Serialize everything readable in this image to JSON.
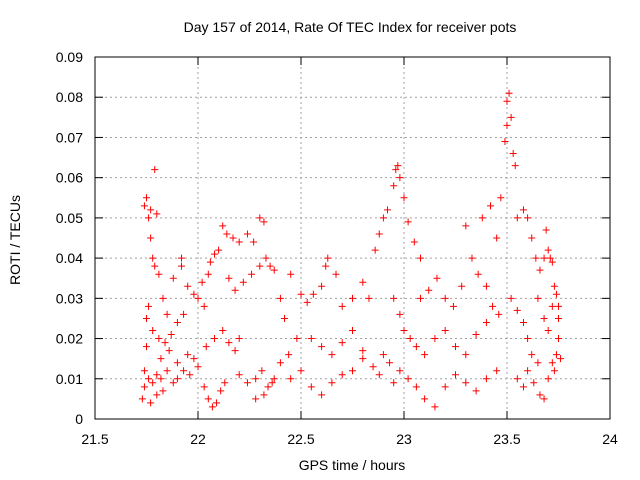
{
  "chart_data": {
    "type": "scatter",
    "title": "Day 157 of 2014, Rate Of TEC Index for receiver pots",
    "xlabel": "GPS time / hours",
    "ylabel": "ROTI / TECUs",
    "xlim": [
      21.5,
      24
    ],
    "ylim": [
      0,
      0.09
    ],
    "x_ticks": [
      21.5,
      22,
      22.5,
      23,
      23.5,
      24
    ],
    "x_tick_labels": [
      "21.5",
      "22",
      "22.5",
      "23",
      "23.5",
      "24"
    ],
    "y_ticks": [
      0,
      0.01,
      0.02,
      0.03,
      0.04,
      0.05,
      0.06,
      0.07,
      0.08,
      0.09
    ],
    "y_tick_labels": [
      "0",
      "0.01",
      "0.02",
      "0.03",
      "0.04",
      "0.05",
      "0.06",
      "0.07",
      "0.08",
      "0.09"
    ],
    "grid": true,
    "marker": "+",
    "series": [
      {
        "name": "pots",
        "color": "#ff0000",
        "points": [
          [
            21.73,
            0.005
          ],
          [
            21.74,
            0.008
          ],
          [
            21.74,
            0.012
          ],
          [
            21.75,
            0.018
          ],
          [
            21.75,
            0.025
          ],
          [
            21.76,
            0.028
          ],
          [
            21.74,
            0.053
          ],
          [
            21.75,
            0.055
          ],
          [
            21.76,
            0.05
          ],
          [
            21.77,
            0.045
          ],
          [
            21.78,
            0.04
          ],
          [
            21.79,
            0.038
          ],
          [
            21.77,
            0.052
          ],
          [
            21.79,
            0.062
          ],
          [
            21.8,
            0.051
          ],
          [
            21.81,
            0.036
          ],
          [
            21.83,
            0.03
          ],
          [
            21.85,
            0.026
          ],
          [
            21.76,
            0.01
          ],
          [
            21.78,
            0.009
          ],
          [
            21.8,
            0.011
          ],
          [
            21.82,
            0.01
          ],
          [
            21.85,
            0.012
          ],
          [
            21.88,
            0.009
          ],
          [
            21.77,
            0.004
          ],
          [
            21.8,
            0.006
          ],
          [
            21.83,
            0.007
          ],
          [
            21.9,
            0.01
          ],
          [
            21.93,
            0.012
          ],
          [
            21.96,
            0.011
          ],
          [
            21.78,
            0.022
          ],
          [
            21.81,
            0.02
          ],
          [
            21.84,
            0.019
          ],
          [
            21.87,
            0.021
          ],
          [
            21.9,
            0.024
          ],
          [
            21.93,
            0.026
          ],
          [
            21.82,
            0.015
          ],
          [
            21.86,
            0.017
          ],
          [
            21.9,
            0.014
          ],
          [
            21.95,
            0.016
          ],
          [
            21.98,
            0.015
          ],
          [
            22.0,
            0.013
          ],
          [
            21.88,
            0.035
          ],
          [
            21.92,
            0.038
          ],
          [
            21.95,
            0.033
          ],
          [
            21.98,
            0.031
          ],
          [
            22.02,
            0.034
          ],
          [
            22.05,
            0.036
          ],
          [
            21.92,
            0.04
          ],
          [
            22.0,
            0.03
          ],
          [
            22.03,
            0.028
          ],
          [
            22.06,
            0.039
          ],
          [
            22.08,
            0.041
          ],
          [
            22.1,
            0.042
          ],
          [
            22.03,
            0.008
          ],
          [
            22.05,
            0.005
          ],
          [
            22.07,
            0.003
          ],
          [
            22.09,
            0.004
          ],
          [
            22.11,
            0.007
          ],
          [
            22.13,
            0.009
          ],
          [
            22.04,
            0.018
          ],
          [
            22.08,
            0.02
          ],
          [
            22.12,
            0.022
          ],
          [
            22.15,
            0.019
          ],
          [
            22.18,
            0.017
          ],
          [
            22.2,
            0.02
          ],
          [
            22.12,
            0.048
          ],
          [
            22.14,
            0.046
          ],
          [
            22.17,
            0.045
          ],
          [
            22.2,
            0.044
          ],
          [
            22.24,
            0.046
          ],
          [
            22.27,
            0.044
          ],
          [
            22.15,
            0.035
          ],
          [
            22.18,
            0.032
          ],
          [
            22.22,
            0.034
          ],
          [
            22.26,
            0.036
          ],
          [
            22.3,
            0.038
          ],
          [
            22.33,
            0.04
          ],
          [
            22.2,
            0.011
          ],
          [
            22.24,
            0.009
          ],
          [
            22.28,
            0.01
          ],
          [
            22.31,
            0.012
          ],
          [
            22.34,
            0.008
          ],
          [
            22.37,
            0.01
          ],
          [
            22.3,
            0.05
          ],
          [
            22.32,
            0.049
          ],
          [
            22.35,
            0.038
          ],
          [
            22.37,
            0.037
          ],
          [
            22.4,
            0.03
          ],
          [
            22.42,
            0.025
          ],
          [
            22.28,
            0.005
          ],
          [
            22.32,
            0.006
          ],
          [
            22.36,
            0.009
          ],
          [
            22.4,
            0.014
          ],
          [
            22.44,
            0.016
          ],
          [
            22.48,
            0.02
          ],
          [
            22.45,
            0.036
          ],
          [
            22.5,
            0.031
          ],
          [
            22.53,
            0.029
          ],
          [
            22.56,
            0.031
          ],
          [
            22.6,
            0.033
          ],
          [
            22.62,
            0.038
          ],
          [
            22.45,
            0.01
          ],
          [
            22.5,
            0.012
          ],
          [
            22.55,
            0.008
          ],
          [
            22.6,
            0.006
          ],
          [
            22.65,
            0.009
          ],
          [
            22.7,
            0.011
          ],
          [
            22.55,
            0.02
          ],
          [
            22.6,
            0.018
          ],
          [
            22.65,
            0.016
          ],
          [
            22.7,
            0.019
          ],
          [
            22.75,
            0.022
          ],
          [
            22.8,
            0.017
          ],
          [
            22.63,
            0.04
          ],
          [
            22.67,
            0.036
          ],
          [
            22.7,
            0.028
          ],
          [
            22.75,
            0.03
          ],
          [
            22.8,
            0.034
          ],
          [
            22.83,
            0.03
          ],
          [
            22.75,
            0.012
          ],
          [
            22.8,
            0.015
          ],
          [
            22.85,
            0.013
          ],
          [
            22.88,
            0.011
          ],
          [
            22.9,
            0.016
          ],
          [
            22.93,
            0.014
          ],
          [
            22.86,
            0.042
          ],
          [
            22.88,
            0.046
          ],
          [
            22.9,
            0.05
          ],
          [
            22.92,
            0.052
          ],
          [
            22.95,
            0.058
          ],
          [
            22.96,
            0.062
          ],
          [
            22.97,
            0.063
          ],
          [
            22.98,
            0.06
          ],
          [
            23.0,
            0.055
          ],
          [
            23.02,
            0.049
          ],
          [
            23.05,
            0.044
          ],
          [
            23.08,
            0.04
          ],
          [
            22.95,
            0.03
          ],
          [
            22.98,
            0.026
          ],
          [
            23.0,
            0.022
          ],
          [
            23.03,
            0.02
          ],
          [
            23.06,
            0.018
          ],
          [
            23.1,
            0.016
          ],
          [
            22.95,
            0.009
          ],
          [
            22.98,
            0.012
          ],
          [
            23.02,
            0.01
          ],
          [
            23.06,
            0.008
          ],
          [
            23.1,
            0.005
          ],
          [
            23.15,
            0.003
          ],
          [
            23.08,
            0.03
          ],
          [
            23.12,
            0.032
          ],
          [
            23.16,
            0.035
          ],
          [
            23.2,
            0.03
          ],
          [
            23.24,
            0.028
          ],
          [
            23.28,
            0.033
          ],
          [
            23.15,
            0.02
          ],
          [
            23.2,
            0.022
          ],
          [
            23.25,
            0.018
          ],
          [
            23.3,
            0.016
          ],
          [
            23.35,
            0.021
          ],
          [
            23.4,
            0.024
          ],
          [
            23.2,
            0.008
          ],
          [
            23.25,
            0.011
          ],
          [
            23.3,
            0.009
          ],
          [
            23.35,
            0.007
          ],
          [
            23.4,
            0.01
          ],
          [
            23.45,
            0.012
          ],
          [
            23.3,
            0.048
          ],
          [
            23.33,
            0.04
          ],
          [
            23.36,
            0.036
          ],
          [
            23.4,
            0.033
          ],
          [
            23.43,
            0.028
          ],
          [
            23.46,
            0.026
          ],
          [
            23.38,
            0.05
          ],
          [
            23.42,
            0.053
          ],
          [
            23.45,
            0.045
          ],
          [
            23.47,
            0.055
          ],
          [
            23.49,
            0.069
          ],
          [
            23.5,
            0.073
          ],
          [
            23.5,
            0.079
          ],
          [
            23.51,
            0.081
          ],
          [
            23.52,
            0.075
          ],
          [
            23.53,
            0.066
          ],
          [
            23.54,
            0.063
          ],
          [
            23.55,
            0.05
          ],
          [
            23.52,
            0.03
          ],
          [
            23.55,
            0.027
          ],
          [
            23.58,
            0.024
          ],
          [
            23.6,
            0.02
          ],
          [
            23.62,
            0.016
          ],
          [
            23.65,
            0.014
          ],
          [
            23.55,
            0.01
          ],
          [
            23.58,
            0.008
          ],
          [
            23.6,
            0.012
          ],
          [
            23.63,
            0.009
          ],
          [
            23.66,
            0.006
          ],
          [
            23.68,
            0.005
          ],
          [
            23.58,
            0.052
          ],
          [
            23.6,
            0.05
          ],
          [
            23.62,
            0.045
          ],
          [
            23.64,
            0.04
          ],
          [
            23.66,
            0.037
          ],
          [
            23.68,
            0.04
          ],
          [
            23.65,
            0.03
          ],
          [
            23.68,
            0.025
          ],
          [
            23.7,
            0.022
          ],
          [
            23.72,
            0.028
          ],
          [
            23.74,
            0.031
          ],
          [
            23.75,
            0.028
          ],
          [
            23.7,
            0.01
          ],
          [
            23.72,
            0.014
          ],
          [
            23.73,
            0.012
          ],
          [
            23.74,
            0.016
          ],
          [
            23.75,
            0.02
          ],
          [
            23.76,
            0.015
          ],
          [
            23.69,
            0.047
          ],
          [
            23.7,
            0.042
          ],
          [
            23.71,
            0.04
          ],
          [
            23.72,
            0.039
          ],
          [
            23.73,
            0.033
          ],
          [
            23.75,
            0.025
          ]
        ]
      }
    ]
  }
}
